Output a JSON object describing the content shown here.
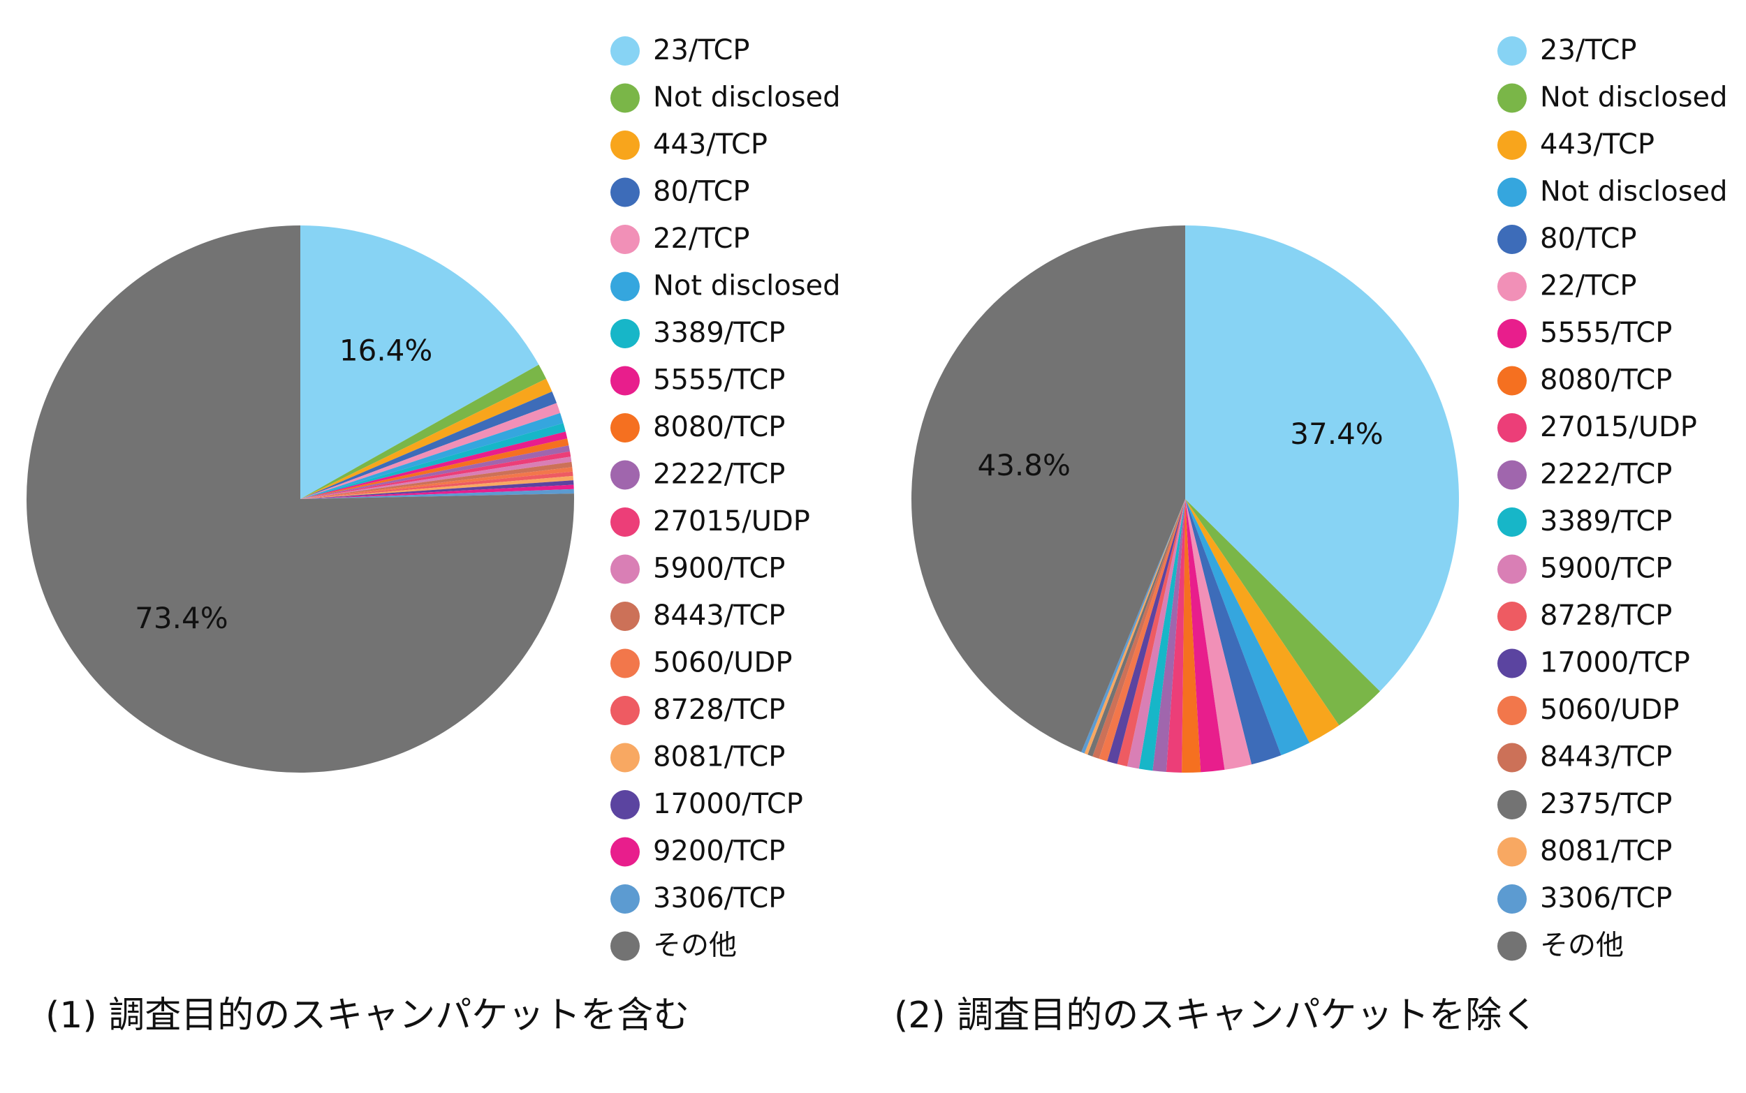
{
  "chart_data": [
    {
      "type": "pie",
      "caption": "(1) 調査目的のスキャンパケットを含む",
      "slices": [
        {
          "label": "23/TCP",
          "value": 16.4,
          "color": "#87d3f4",
          "show_label": true
        },
        {
          "label": "Not disclosed",
          "value": 0.9,
          "color": "#7ab648",
          "show_label": false
        },
        {
          "label": "443/TCP",
          "value": 0.8,
          "color": "#f8a51c",
          "show_label": false
        },
        {
          "label": "80/TCP",
          "value": 0.7,
          "color": "#3d6cb9",
          "show_label": false
        },
        {
          "label": "22/TCP",
          "value": 0.6,
          "color": "#f190b7",
          "show_label": false
        },
        {
          "label": "Not disclosed",
          "value": 0.6,
          "color": "#35a6de",
          "show_label": false
        },
        {
          "label": "3389/TCP",
          "value": 0.5,
          "color": "#17b6c8",
          "show_label": false
        },
        {
          "label": "5555/TCP",
          "value": 0.4,
          "color": "#e81e8c",
          "show_label": false
        },
        {
          "label": "8080/TCP",
          "value": 0.4,
          "color": "#f57020",
          "show_label": false
        },
        {
          "label": "2222/TCP",
          "value": 0.35,
          "color": "#a066ad",
          "show_label": false
        },
        {
          "label": "27015/UDP",
          "value": 0.3,
          "color": "#ec3e78",
          "show_label": false
        },
        {
          "label": "5900/TCP",
          "value": 0.3,
          "color": "#d97fb5",
          "show_label": false
        },
        {
          "label": "8443/TCP",
          "value": 0.3,
          "color": "#cc7158",
          "show_label": false
        },
        {
          "label": "5060/UDP",
          "value": 0.25,
          "color": "#f2774b",
          "show_label": false
        },
        {
          "label": "8728/TCP",
          "value": 0.25,
          "color": "#ee5b62",
          "show_label": false
        },
        {
          "label": "8081/TCP",
          "value": 0.25,
          "color": "#f8a862",
          "show_label": false
        },
        {
          "label": "17000/TCP",
          "value": 0.25,
          "color": "#5b44a0",
          "show_label": false
        },
        {
          "label": "9200/TCP",
          "value": 0.25,
          "color": "#e81e8c",
          "show_label": false
        },
        {
          "label": "3306/TCP",
          "value": 0.25,
          "color": "#5c9bd1",
          "show_label": false
        },
        {
          "label": "その他",
          "value": 73.4,
          "color": "#737373",
          "show_label": true
        }
      ]
    },
    {
      "type": "pie",
      "caption": "(2) 調査目的のスキャンパケットを除く",
      "slices": [
        {
          "label": "23/TCP",
          "value": 37.4,
          "color": "#87d3f4",
          "show_label": true
        },
        {
          "label": "Not disclosed",
          "value": 3.1,
          "color": "#7ab648",
          "show_label": false
        },
        {
          "label": "443/TCP",
          "value": 2.0,
          "color": "#f8a51c",
          "show_label": false
        },
        {
          "label": "Not disclosed",
          "value": 1.8,
          "color": "#35a6de",
          "show_label": false
        },
        {
          "label": "80/TCP",
          "value": 1.8,
          "color": "#3d6cb9",
          "show_label": false
        },
        {
          "label": "22/TCP",
          "value": 1.6,
          "color": "#f190b7",
          "show_label": false
        },
        {
          "label": "5555/TCP",
          "value": 1.4,
          "color": "#e81e8c",
          "show_label": false
        },
        {
          "label": "8080/TCP",
          "value": 1.1,
          "color": "#f57020",
          "show_label": false
        },
        {
          "label": "27015/UDP",
          "value": 0.9,
          "color": "#ec3e78",
          "show_label": false
        },
        {
          "label": "2222/TCP",
          "value": 0.8,
          "color": "#a066ad",
          "show_label": false
        },
        {
          "label": "3389/TCP",
          "value": 0.8,
          "color": "#17b6c8",
          "show_label": false
        },
        {
          "label": "5900/TCP",
          "value": 0.7,
          "color": "#d97fb5",
          "show_label": false
        },
        {
          "label": "8728/TCP",
          "value": 0.6,
          "color": "#ee5b62",
          "show_label": false
        },
        {
          "label": "17000/TCP",
          "value": 0.6,
          "color": "#5b44a0",
          "show_label": false
        },
        {
          "label": "5060/UDP",
          "value": 0.5,
          "color": "#f2774b",
          "show_label": false
        },
        {
          "label": "8443/TCP",
          "value": 0.4,
          "color": "#cc7158",
          "show_label": false
        },
        {
          "label": "2375/TCP",
          "value": 0.3,
          "color": "#737373",
          "show_label": false
        },
        {
          "label": "8081/TCP",
          "value": 0.2,
          "color": "#f8a862",
          "show_label": false
        },
        {
          "label": "3306/TCP",
          "value": 0.2,
          "color": "#5c9bd1",
          "show_label": false
        },
        {
          "label": "その他",
          "value": 43.8,
          "color": "#737373",
          "show_label": true
        }
      ]
    }
  ]
}
